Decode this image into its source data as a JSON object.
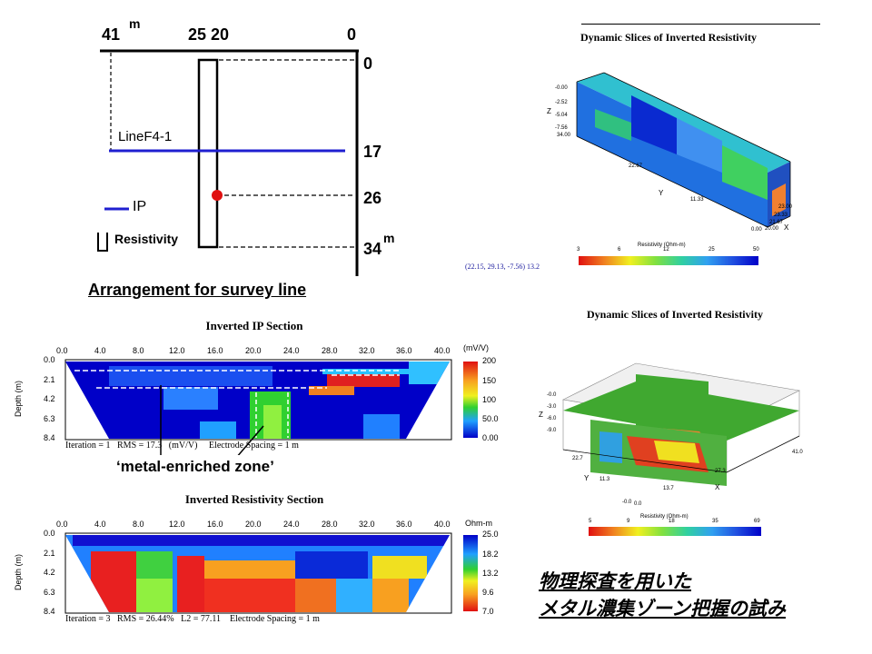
{
  "arrangement": {
    "top_labels": [
      "41",
      "25",
      "20",
      "0"
    ],
    "unit_top": "m",
    "right_labels": [
      "0",
      "17",
      "26",
      "34"
    ],
    "unit_right": "m",
    "line_label": "LineF4-1",
    "legend_ip": "IP",
    "legend_res": "Resistivity",
    "caption": "Arrangement for survey line"
  },
  "ip_section": {
    "title": "Inverted IP Section",
    "x_ticks": [
      "0.0",
      "4.0",
      "8.0",
      "12.0",
      "16.0",
      "20.0",
      "24.0",
      "28.0",
      "32.0",
      "36.0",
      "40.0"
    ],
    "y_ticks": [
      "0.0",
      "2.1",
      "4.2",
      "6.3",
      "8.4"
    ],
    "y_label": "Depth (m)",
    "unit": "(mV/V)",
    "scale_values": [
      "200",
      "150",
      "100",
      "50.0",
      "0.00"
    ],
    "footer": "Iteration = 1   RMS = 17.3   (mV/V)     Electrode Spacing = 1 m",
    "annotation": "‘metal-enriched zone’"
  },
  "res_section": {
    "title": "Inverted Resistivity Section",
    "x_ticks": [
      "0.0",
      "4.0",
      "8.0",
      "12.0",
      "16.0",
      "20.0",
      "24.0",
      "28.0",
      "32.0",
      "36.0",
      "40.0"
    ],
    "y_ticks": [
      "0.0",
      "2.1",
      "4.2",
      "6.3",
      "8.4"
    ],
    "y_label": "Depth (m)",
    "unit": "Ohm-m",
    "scale_values": [
      "25.0",
      "18.2",
      "13.2",
      "9.6",
      "7.0"
    ],
    "footer": "Iteration = 3   RMS = 26.44%   L2 = 77.11    Electrode Spacing = 1 m"
  },
  "slice1": {
    "title": "Dynamic Slices of Inverted Resistivity",
    "z_ticks": [
      "-0.00",
      "-2.52",
      "-5.04",
      "-7.56"
    ],
    "z_label": "Z",
    "y_ticks": [
      "34.00",
      "22.67",
      "11.33",
      "0.00"
    ],
    "y_label": "Y",
    "x_ticks": [
      "23.00",
      "23.33",
      "21.67",
      "20.00"
    ],
    "x_label": "X",
    "colorbar_label": "Resistivity (Ohm-m)",
    "colorbar_ticks": [
      "3",
      "6",
      "12",
      "25",
      "50"
    ],
    "coords": "(22.15, 29.13, -7.56) 13.2"
  },
  "slice2": {
    "title": "Dynamic Slices of Inverted Resistivity",
    "z_ticks": [
      "-0.0",
      "-3.0",
      "-6.0",
      "-9.0"
    ],
    "z_label": "Z",
    "y_ticks": [
      "22.7",
      "11.3",
      "-0.0"
    ],
    "y_label": "Y",
    "x_ticks": [
      "0.0",
      "13.7",
      "27.3",
      "41.0"
    ],
    "x_label": "X",
    "colorbar_label": "Resistivity (Ohm-m)",
    "colorbar_ticks": [
      "5",
      "9",
      "18",
      "35",
      "69"
    ]
  },
  "japanese_title": {
    "line1": "物理探査を用いた",
    "line2": "メタル濃集ゾーン把握の試み"
  },
  "colors": {
    "ip_line": "#1f1fd0",
    "marker": "#e01010",
    "low": "#0000c8",
    "high": "#e01010"
  }
}
